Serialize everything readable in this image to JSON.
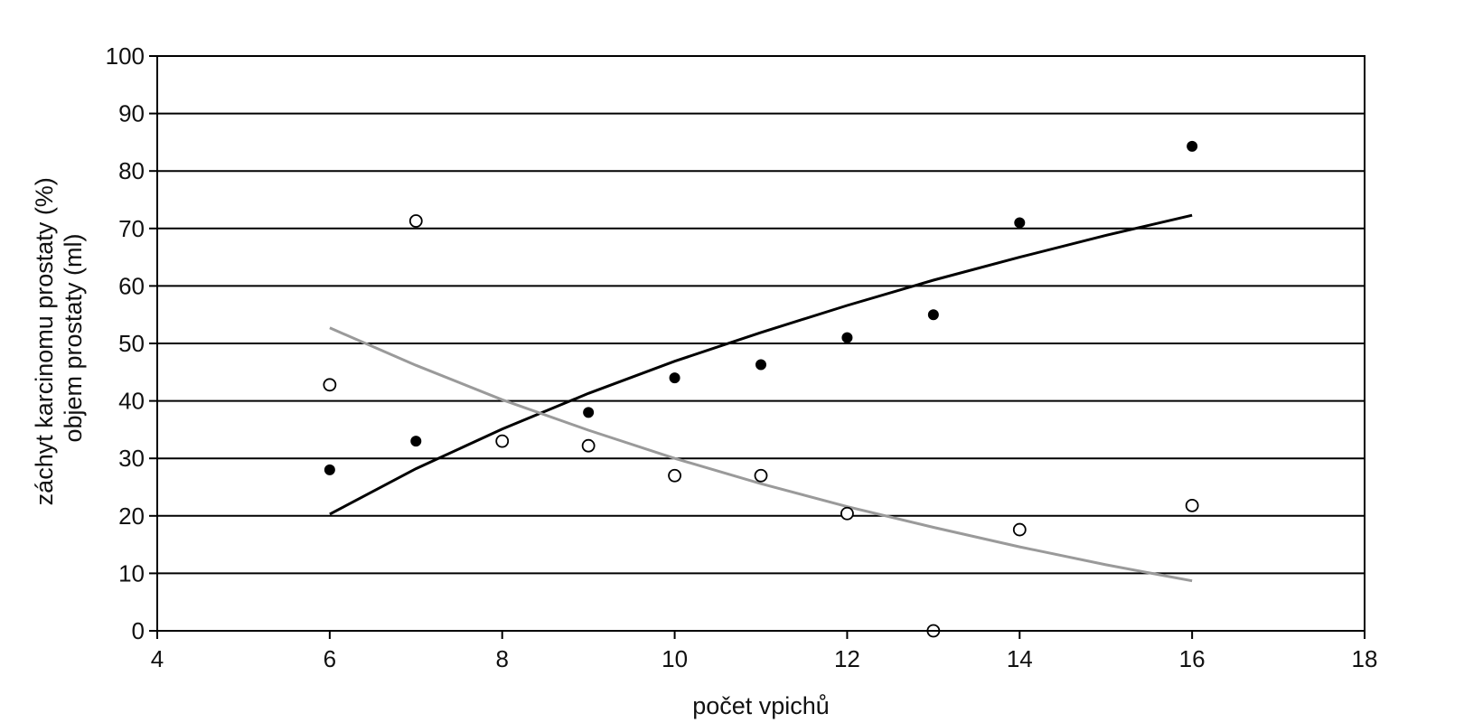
{
  "chart_data": {
    "type": "scatter",
    "title": "",
    "xlabel": "počet vpichů",
    "ylabel_lines": [
      "záchyt karcinomu prostaty (%)",
      "objem prostaty (ml)"
    ],
    "xlim": [
      4,
      18
    ],
    "ylim": [
      0,
      100
    ],
    "x_ticks": [
      4,
      6,
      8,
      10,
      12,
      14,
      16,
      18
    ],
    "y_ticks": [
      0,
      10,
      20,
      30,
      40,
      50,
      60,
      70,
      80,
      90,
      100
    ],
    "grid": "horizontal",
    "series": [
      {
        "marker": "filled-circle",
        "color": "#000000",
        "points": [
          [
            6,
            28
          ],
          [
            7,
            33
          ],
          [
            9,
            38
          ],
          [
            10,
            44
          ],
          [
            11,
            46.3
          ],
          [
            12,
            51
          ],
          [
            13,
            55
          ],
          [
            14,
            71
          ],
          [
            16,
            84.3
          ]
        ],
        "trendline": {
          "color": "#000000",
          "points": [
            [
              6,
              20.3
            ],
            [
              7,
              28.2
            ],
            [
              8,
              35.1
            ],
            [
              9,
              41.3
            ],
            [
              10,
              46.9
            ],
            [
              11,
              51.9
            ],
            [
              12,
              56.6
            ],
            [
              13,
              61.0
            ],
            [
              14,
              65.0
            ],
            [
              15,
              68.8
            ],
            [
              16,
              72.3
            ]
          ]
        }
      },
      {
        "marker": "open-circle",
        "color": "#000000",
        "points": [
          [
            6,
            42.8
          ],
          [
            7,
            71.3
          ],
          [
            8,
            33
          ],
          [
            9,
            32.2
          ],
          [
            10,
            27
          ],
          [
            11,
            27
          ],
          [
            12,
            20.4
          ],
          [
            13,
            0
          ],
          [
            14,
            17.6
          ],
          [
            16,
            21.8
          ]
        ],
        "trendline": {
          "color": "#9a9a9a",
          "points": [
            [
              6,
              52.7
            ],
            [
              7,
              46.2
            ],
            [
              8,
              40.2
            ],
            [
              9,
              34.9
            ],
            [
              10,
              30.0
            ],
            [
              11,
              25.6
            ],
            [
              12,
              21.6
            ],
            [
              13,
              18.0
            ],
            [
              14,
              14.6
            ],
            [
              15,
              11.5
            ],
            [
              16,
              8.7
            ]
          ]
        }
      }
    ]
  }
}
